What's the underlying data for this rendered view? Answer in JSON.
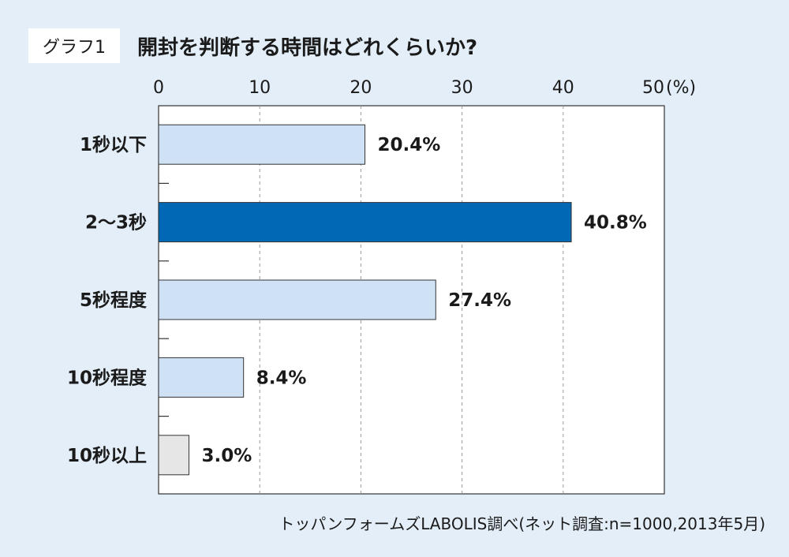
{
  "header": {
    "badge": "グラフ1",
    "title": "開封を判断する時間はどれくらいか?"
  },
  "source_note": "トッパンフォームズLABOLIS調べ(ネット調査:n=1000,2013年5月)",
  "colors": {
    "background": "#e3eef8",
    "bar_default": "#cfe2f5",
    "bar_highlight": "#0068b4",
    "bar_other": "#e6e6e6"
  },
  "chart_data": {
    "type": "bar",
    "orientation": "horizontal",
    "title": "開封を判断する時間はどれくらいか?",
    "categories": [
      "1秒以下",
      "2〜3秒",
      "5秒程度",
      "10秒程度",
      "10秒以上"
    ],
    "values": [
      20.4,
      40.8,
      27.4,
      8.4,
      3.0
    ],
    "value_labels": [
      "20.4%",
      "40.8%",
      "27.4%",
      "8.4%",
      "3.0%"
    ],
    "bar_styles": [
      "default",
      "highlight",
      "default",
      "default",
      "other"
    ],
    "xlim": [
      0,
      50
    ],
    "xticks": [
      0,
      10,
      20,
      30,
      40,
      50
    ],
    "tick_labels": [
      "0",
      "10",
      "20",
      "30",
      "40",
      "50"
    ],
    "unit_label": "(%)",
    "xlabel": "",
    "ylabel": "",
    "grid": true,
    "axis_position": "top"
  }
}
